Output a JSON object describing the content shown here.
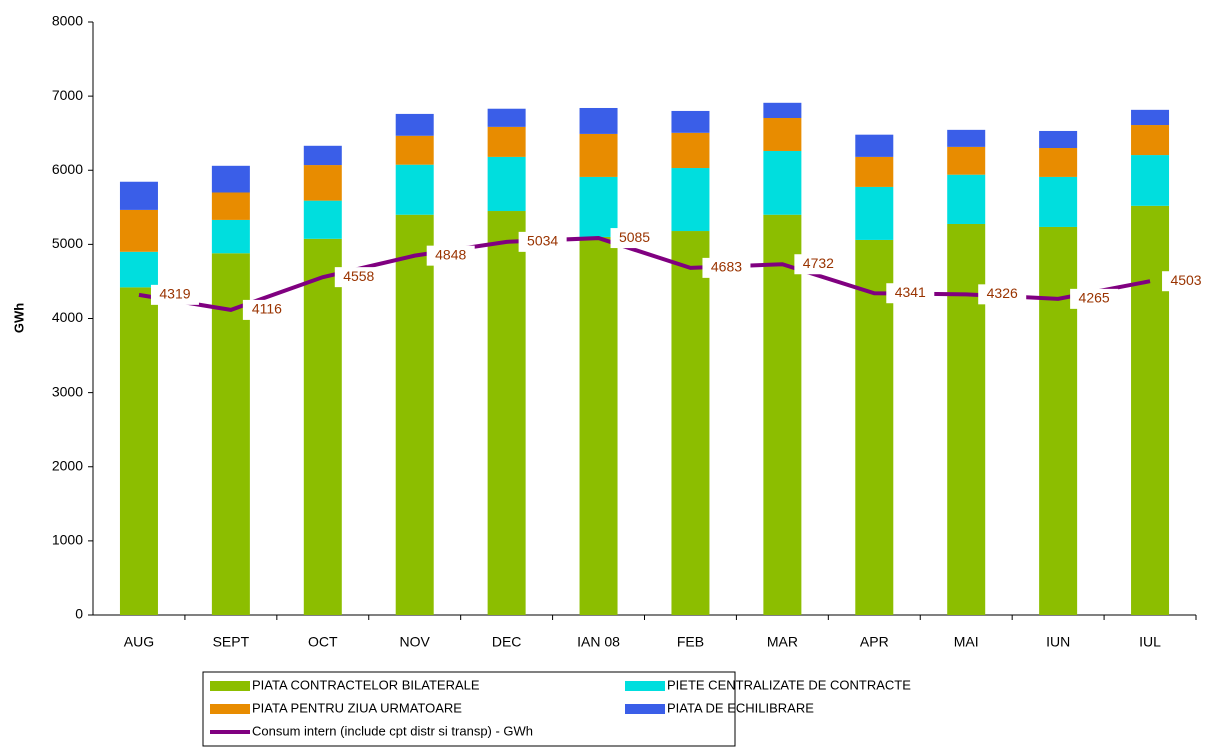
{
  "chart_data": {
    "type": "stacked-bar-line",
    "y_label": "GWh",
    "categories": [
      "AUG",
      "SEPT",
      "OCT",
      "NOV",
      "DEC",
      "IAN 08",
      "FEB",
      "MAR",
      "APR",
      "MAI",
      "IUN",
      "IUL"
    ],
    "series": [
      {
        "name": "PIATA CONTRACTELOR BILATERALE",
        "color": "#8cbe00",
        "type": "bar",
        "values": [
          4420,
          4880,
          5075,
          5400,
          5450,
          5100,
          5180,
          5400,
          5060,
          5275,
          5235,
          5520
        ]
      },
      {
        "name": "PIETE CENTRALIZATE DE CONTRACTE",
        "color": "#00dede",
        "type": "bar",
        "values": [
          480,
          450,
          515,
          675,
          730,
          810,
          850,
          860,
          715,
          665,
          675,
          685
        ]
      },
      {
        "name": "PIATA PENTRU ZIUA URMATOARE",
        "color": "#e88c00",
        "type": "bar",
        "values": [
          565,
          370,
          480,
          390,
          405,
          580,
          475,
          445,
          405,
          375,
          390,
          405
        ]
      },
      {
        "name": "PIATA DE ECHILIBRARE",
        "color": "#3a5ee8",
        "type": "bar",
        "values": [
          380,
          360,
          260,
          295,
          245,
          350,
          295,
          205,
          300,
          230,
          230,
          205
        ]
      },
      {
        "name": "Consum intern (include cpt distr si transp) - GWh",
        "color": "#800080",
        "type": "line",
        "values": [
          4319,
          4116,
          4558,
          4848,
          5034,
          5085,
          4683,
          4732,
          4341,
          4326,
          4265,
          4503
        ]
      }
    ],
    "ylim": [
      0,
      8000
    ],
    "yticks": [
      0,
      1000,
      2000,
      3000,
      4000,
      5000,
      6000,
      7000,
      8000
    ],
    "grid": false
  }
}
